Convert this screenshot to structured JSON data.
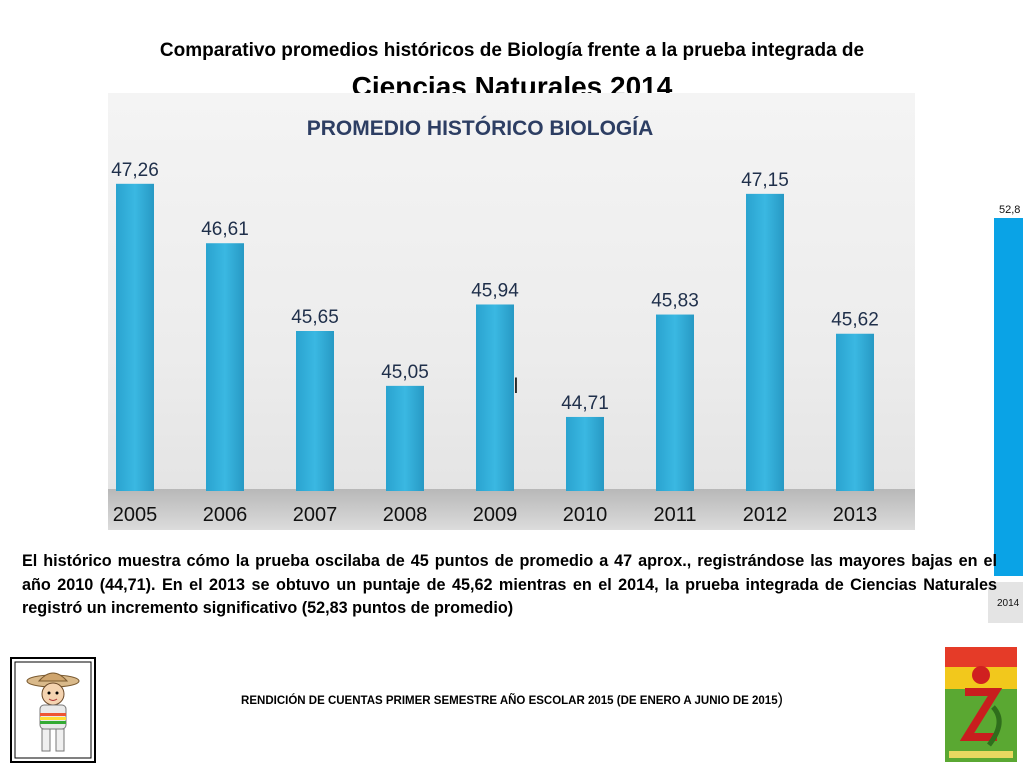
{
  "header": {
    "line1": "Comparativo promedios históricos de Biología frente a la prueba integrada de",
    "line2": "Ciencias Naturales 2014"
  },
  "chart_data": {
    "type": "bar",
    "title": "PROMEDIO HISTÓRICO BIOLOGÍA",
    "categories": [
      "2005",
      "2006",
      "2007",
      "2008",
      "2009",
      "2010",
      "2011",
      "2012",
      "2013"
    ],
    "values": [
      47.26,
      46.61,
      45.65,
      45.05,
      45.94,
      44.71,
      45.83,
      47.15,
      45.62
    ],
    "value_labels": [
      "47,26",
      "46,61",
      "45,65",
      "45,05",
      "45,94",
      "44,71",
      "45,83",
      "47,15",
      "45,62"
    ],
    "side_bar": {
      "category": "2014",
      "value": 52.83,
      "label": "52,8"
    },
    "annotation": "El",
    "bar_color": "#36b4de"
  },
  "description": "El histórico muestra cómo la prueba oscilaba de 45 puntos de promedio a 47 aprox., registrándose las mayores bajas en el año 2010 (44,71). En el 2013 se obtuvo un puntaje de 45,62 mientras en el 2014, la prueba integrada de Ciencias Naturales registró un incremento  significativo (52,83 puntos de promedio)",
  "footer": {
    "text": "RENDICIÓN DE CUENTAS PRIMER SEMESTRE AÑO ESCOLAR 2015 (DE ENERO A JUNIO DE 2015",
    "close": ")"
  }
}
